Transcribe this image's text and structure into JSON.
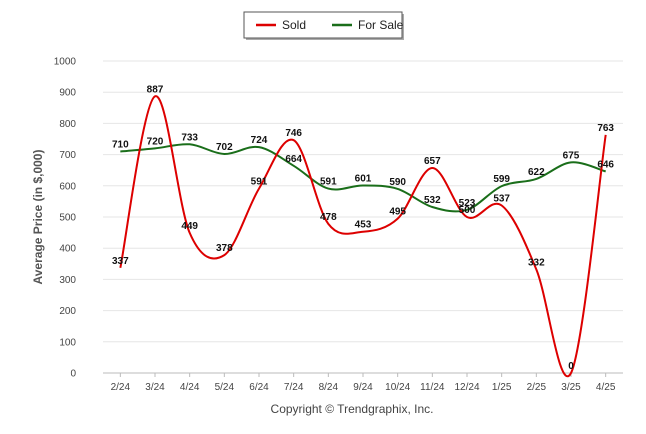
{
  "chart_data": {
    "type": "line",
    "categories": [
      "2/24",
      "3/24",
      "4/24",
      "5/24",
      "6/24",
      "7/24",
      "8/24",
      "9/24",
      "10/24",
      "11/24",
      "12/24",
      "1/25",
      "2/25",
      "3/25",
      "4/25"
    ],
    "series": [
      {
        "name": "Sold",
        "color": "#dd0000",
        "values": [
          337,
          887,
          449,
          378,
          591,
          746,
          478,
          453,
          495,
          657,
          500,
          537,
          332,
          0,
          763
        ]
      },
      {
        "name": "For Sale",
        "color": "#1a6e1a",
        "values": [
          710,
          720,
          733,
          702,
          724,
          664,
          591,
          601,
          590,
          532,
          523,
          599,
          622,
          675,
          646
        ]
      }
    ],
    "ylabel": "Average Price (in $,000)",
    "ylim": [
      0,
      1000
    ],
    "yticks": [
      "0",
      "100",
      "200",
      "300",
      "400",
      "500",
      "600",
      "700",
      "800",
      "900",
      "1000"
    ],
    "grid": true,
    "legend_position": "top-center",
    "credit": "Copyright © Trendgraphix, Inc."
  }
}
